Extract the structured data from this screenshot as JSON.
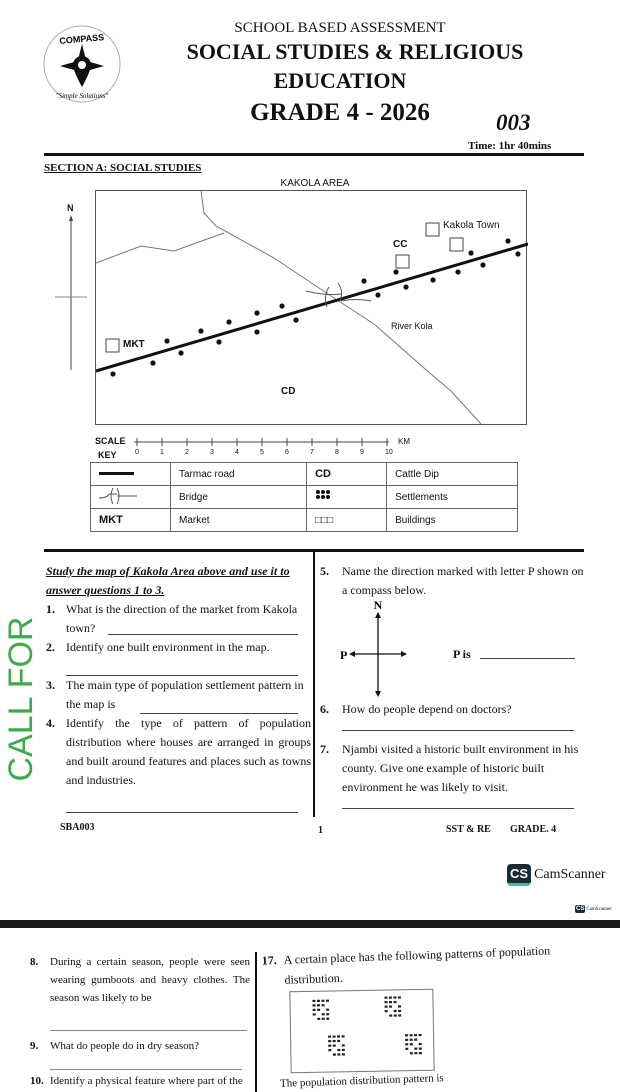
{
  "header": {
    "logo_text": "COMPASS",
    "logo_tagline": "Simple Solutions",
    "assessment": "SCHOOL BASED ASSESSMENT",
    "subject_line1": "SOCIAL STUDIES & RELIGIOUS",
    "subject_line2": "EDUCATION",
    "grade": "GRADE  4 -  2026",
    "code": "003",
    "time": "Time: 1hr 40mins"
  },
  "section": "SECTION A: SOCIAL STUDIES",
  "map": {
    "title": "KAKOLA AREA",
    "north": "N",
    "labels": {
      "kakola_town": "Kakola Town",
      "cc": "CC",
      "river": "River Kola",
      "mkt": "MKT",
      "cd": "CD"
    },
    "scale": {
      "label": "SCALE",
      "unit": "KM",
      "ticks": [
        "0",
        "1",
        "2",
        "3",
        "4",
        "5",
        "6",
        "7",
        "8",
        "9",
        "10"
      ]
    },
    "key_label": "KEY",
    "key": [
      {
        "symbol": "",
        "meaning": "Tarmac road",
        "symbol2": "CD",
        "meaning2": "Cattle Dip"
      },
      {
        "symbol": "",
        "meaning": "Bridge",
        "symbol2": "",
        "meaning2": "Settlements"
      },
      {
        "symbol": "MKT",
        "meaning": "Market",
        "symbol2": "□□□",
        "meaning2": "Buildings"
      }
    ]
  },
  "instructions": "Study the map of Kakola Area above and use it to answer questions 1 to 3.",
  "questions_left": [
    {
      "n": "1.",
      "text": "What is the direction of the market from Kakola town?"
    },
    {
      "n": "2.",
      "text": "Identify one built environment in the map."
    },
    {
      "n": "3.",
      "text": "The main type of population settlement pattern in the map is"
    },
    {
      "n": "4.",
      "text": "Identify the type of pattern of population distribution where houses are arranged in groups and built around features and places such as towns and industries."
    }
  ],
  "questions_right": [
    {
      "n": "5.",
      "text": "Name the direction marked with letter P shown on a compass below."
    },
    {
      "n": "6.",
      "text": "How do people depend on doctors?"
    },
    {
      "n": "7.",
      "text": "Njambi visited a historic built environment in his county. Give one example of historic built environment he was likely to visit."
    }
  ],
  "compass": {
    "n": "N",
    "p": "P",
    "p_is": "P is"
  },
  "footer": {
    "left": "SBA003",
    "page": "1",
    "subject": "SST & RE",
    "grade": "GRADE. 4"
  },
  "watermark": {
    "brand": "CamScanner",
    "badge": "CS"
  },
  "side_text": "CALL FOR",
  "page2": {
    "questions_left": [
      {
        "n": "8.",
        "text": "During a certain season, people were seen wearing gumboots and heavy clothes. The season was likely to be"
      },
      {
        "n": "9.",
        "text": "What do people do in dry season?"
      },
      {
        "n": "10.",
        "text": "Identify a physical feature where part of the"
      }
    ],
    "questions_right": [
      {
        "n": "17.",
        "text": "A certain place has the following patterns of population distribution."
      }
    ],
    "pattern_answer": "The population distribution pattern is"
  }
}
